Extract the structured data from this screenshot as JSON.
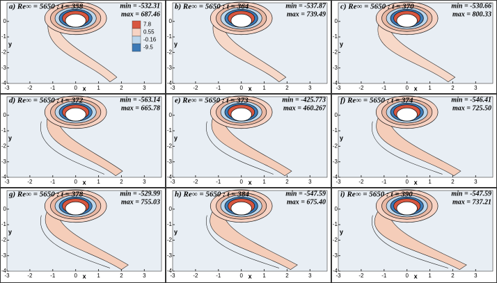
{
  "chart_data": [
    {
      "type": "contour",
      "title": "a) Re∞ = 5650 : t = 358",
      "min_label": "min = -532.31",
      "max_label": "max = 687.46",
      "xlabel": "x",
      "ylabel": "y",
      "xlim": [
        -3,
        3.75
      ],
      "ylim": [
        -4,
        1.2
      ],
      "xticks": [
        -3,
        -2,
        -1,
        0,
        1,
        2,
        3
      ],
      "yticks": [
        -4,
        -3,
        -2,
        -1,
        0
      ],
      "colorbar": {
        "ticks": [
          7.8,
          0.55,
          -0.16,
          -9.5
        ],
        "colors": [
          "#d8563f",
          "#f7d3c4",
          "#bcd6ec",
          "#3b79b6"
        ]
      }
    },
    {
      "type": "contour",
      "title": "b) Re∞ = 5650 : t = 364",
      "min_label": "min = -537.87",
      "max_label": "max = 739.49",
      "xlabel": "x",
      "ylabel": "y",
      "xlim": [
        -3,
        3.75
      ],
      "ylim": [
        -4,
        1.2
      ],
      "xticks": [
        -3,
        -2,
        -1,
        0,
        1,
        2,
        3
      ],
      "yticks": [
        -4,
        -3,
        -2,
        -1,
        0
      ]
    },
    {
      "type": "contour",
      "title": "c) Re∞ = 5650 : t = 370",
      "min_label": "min = -530.66",
      "max_label": "max = 800.33",
      "xlabel": "x",
      "ylabel": "y",
      "xlim": [
        -3,
        3.75
      ],
      "ylim": [
        -4,
        1.2
      ],
      "xticks": [
        -3,
        -2,
        -1,
        0,
        1,
        2,
        3
      ],
      "yticks": [
        -4,
        -3,
        -2,
        -1,
        0
      ]
    },
    {
      "type": "contour",
      "title": "d) Re∞ = 5650 : t = 372",
      "min_label": "min = -563.14",
      "max_label": "max = 665.78",
      "xlabel": "x",
      "ylabel": "y",
      "xlim": [
        -3,
        3.75
      ],
      "ylim": [
        -4,
        1.2
      ],
      "xticks": [
        -3,
        -2,
        -1,
        0,
        1,
        2,
        3
      ],
      "yticks": [
        -4,
        -3,
        -2,
        -1,
        0
      ]
    },
    {
      "type": "contour",
      "title": "e) Re∞ = 5650 : t = 373",
      "min_label": "min = -425.773",
      "max_label": "max = 460.267",
      "xlabel": "x",
      "ylabel": "y",
      "xlim": [
        -3,
        3.75
      ],
      "ylim": [
        -4,
        1.2
      ],
      "xticks": [
        -3,
        -2,
        -1,
        0,
        1,
        2,
        3
      ],
      "yticks": [
        -4,
        -3,
        -2,
        -1,
        0
      ]
    },
    {
      "type": "contour",
      "title": "f) Re∞ = 5650 : t = 374",
      "min_label": "min = -546.41",
      "max_label": "max = 725.50",
      "xlabel": "x",
      "ylabel": "y",
      "xlim": [
        -3,
        3.75
      ],
      "ylim": [
        -4,
        1.2
      ],
      "xticks": [
        -3,
        -2,
        -1,
        0,
        1,
        2,
        3
      ],
      "yticks": [
        -4,
        -3,
        -2,
        -1,
        0
      ]
    },
    {
      "type": "contour",
      "title": "g) Re∞ = 5650 : t = 378",
      "min_label": "min = -529.99",
      "max_label": "max = 755.03",
      "xlabel": "x",
      "ylabel": "y",
      "xlim": [
        -3,
        3.75
      ],
      "ylim": [
        -4,
        1.2
      ],
      "xticks": [
        -3,
        -2,
        -1,
        0,
        1,
        2,
        3
      ],
      "yticks": [
        -4,
        -3,
        -2,
        -1,
        0
      ]
    },
    {
      "type": "contour",
      "title": "h) Re∞ = 5650 : t = 384",
      "min_label": "min = -547.59",
      "max_label": "max = 675.40",
      "xlabel": "x",
      "ylabel": "y",
      "xlim": [
        -3,
        3.75
      ],
      "ylim": [
        -4,
        1.2
      ],
      "xticks": [
        -3,
        -2,
        -1,
        0,
        1,
        2,
        3
      ],
      "yticks": [
        -4,
        -3,
        -2,
        -1,
        0
      ]
    },
    {
      "type": "contour",
      "title": "i) Re∞ = 5650 : t = 390",
      "min_label": "min = -547.59",
      "max_label": "max = 737.21",
      "xlabel": "x",
      "ylabel": "y",
      "xlim": [
        -3,
        3.75
      ],
      "ylim": [
        -4,
        1.2
      ],
      "xticks": [
        -3,
        -2,
        -1,
        0,
        1,
        2,
        3
      ],
      "yticks": [
        -4,
        -3,
        -2,
        -1,
        0
      ]
    }
  ]
}
